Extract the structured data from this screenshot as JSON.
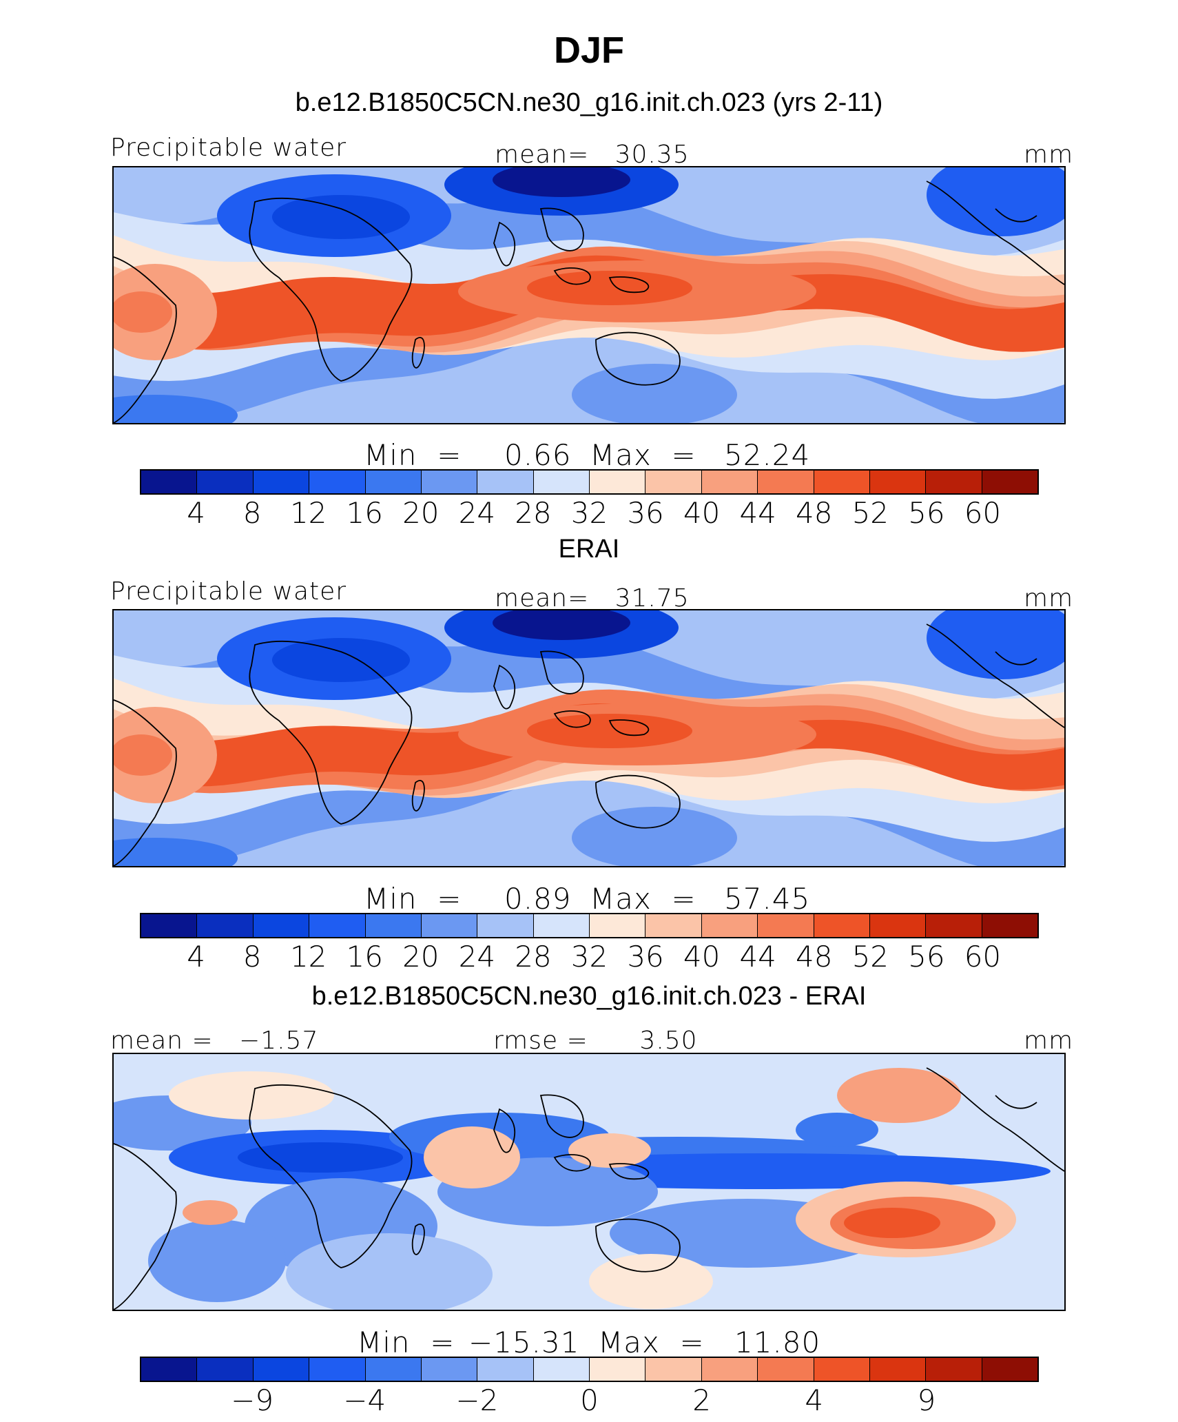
{
  "page": {
    "title": "DJF"
  },
  "palette": [
    "#08158f",
    "#0a2fbf",
    "#0b46e0",
    "#1f5df2",
    "#3b78f0",
    "#6b98f2",
    "#a6c2f7",
    "#d6e4fb",
    "#fde8d8",
    "#fbc4a8",
    "#f8a07e",
    "#f47a52",
    "#ee5428",
    "#da3510",
    "#b81f08",
    "#8e0e04"
  ],
  "panels": [
    {
      "title": "b.e12.B1850C5CN.ne30_g16.init.ch.023 (yrs 2-11)",
      "left_label": "Precipitable water",
      "center_label": "mean=   30.35",
      "right_label": "mm",
      "map_desc": "model",
      "min_label": "Min  =",
      "min_value": "0.66",
      "max_label": "Max  =",
      "max_value": "52.24",
      "ticks": [
        "4",
        "8",
        "12",
        "16",
        "20",
        "24",
        "28",
        "32",
        "36",
        "40",
        "44",
        "48",
        "52",
        "56",
        "60"
      ]
    },
    {
      "title": "ERAI",
      "left_label": "Precipitable water",
      "center_label": "mean=   31.75",
      "right_label": "mm",
      "map_desc": "obs",
      "min_label": "Min  =",
      "min_value": "0.89",
      "max_label": "Max  =",
      "max_value": "57.45",
      "ticks": [
        "4",
        "8",
        "12",
        "16",
        "20",
        "24",
        "28",
        "32",
        "36",
        "40",
        "44",
        "48",
        "52",
        "56",
        "60"
      ]
    },
    {
      "title": "b.e12.B1850C5CN.ne30_g16.init.ch.023 - ERAI",
      "left_label": "mean =   −1.57",
      "center_label": "rmse =      3.50",
      "right_label": "mm",
      "map_desc": "diff",
      "min_label": "Min  =",
      "min_value": "−15.31",
      "max_label": "Max  =",
      "max_value": "11.80",
      "ticks": [
        "−9",
        "−4",
        "−2",
        "0",
        "2",
        "4",
        "9"
      ]
    }
  ],
  "chart_data": [
    {
      "type": "heatmap",
      "title": "b.e12.B1850C5CN.ne30_g16.init.ch.023 (yrs 2-11)",
      "variable": "Precipitable water",
      "units": "mm",
      "mean": 30.35,
      "min": 0.66,
      "max": 52.24,
      "levels": [
        4,
        8,
        12,
        16,
        20,
        24,
        28,
        32,
        36,
        40,
        44,
        48,
        52,
        56,
        60
      ]
    },
    {
      "type": "heatmap",
      "title": "ERAI",
      "variable": "Precipitable water",
      "units": "mm",
      "mean": 31.75,
      "min": 0.89,
      "max": 57.45,
      "levels": [
        4,
        8,
        12,
        16,
        20,
        24,
        28,
        32,
        36,
        40,
        44,
        48,
        52,
        56,
        60
      ]
    },
    {
      "type": "heatmap",
      "title": "b.e12.B1850C5CN.ne30_g16.init.ch.023 - ERAI",
      "units": "mm",
      "mean": -1.57,
      "rmse": 3.5,
      "min": -15.31,
      "max": 11.8,
      "levels": [
        -9,
        -4,
        -2,
        0,
        2,
        4,
        9
      ]
    }
  ]
}
